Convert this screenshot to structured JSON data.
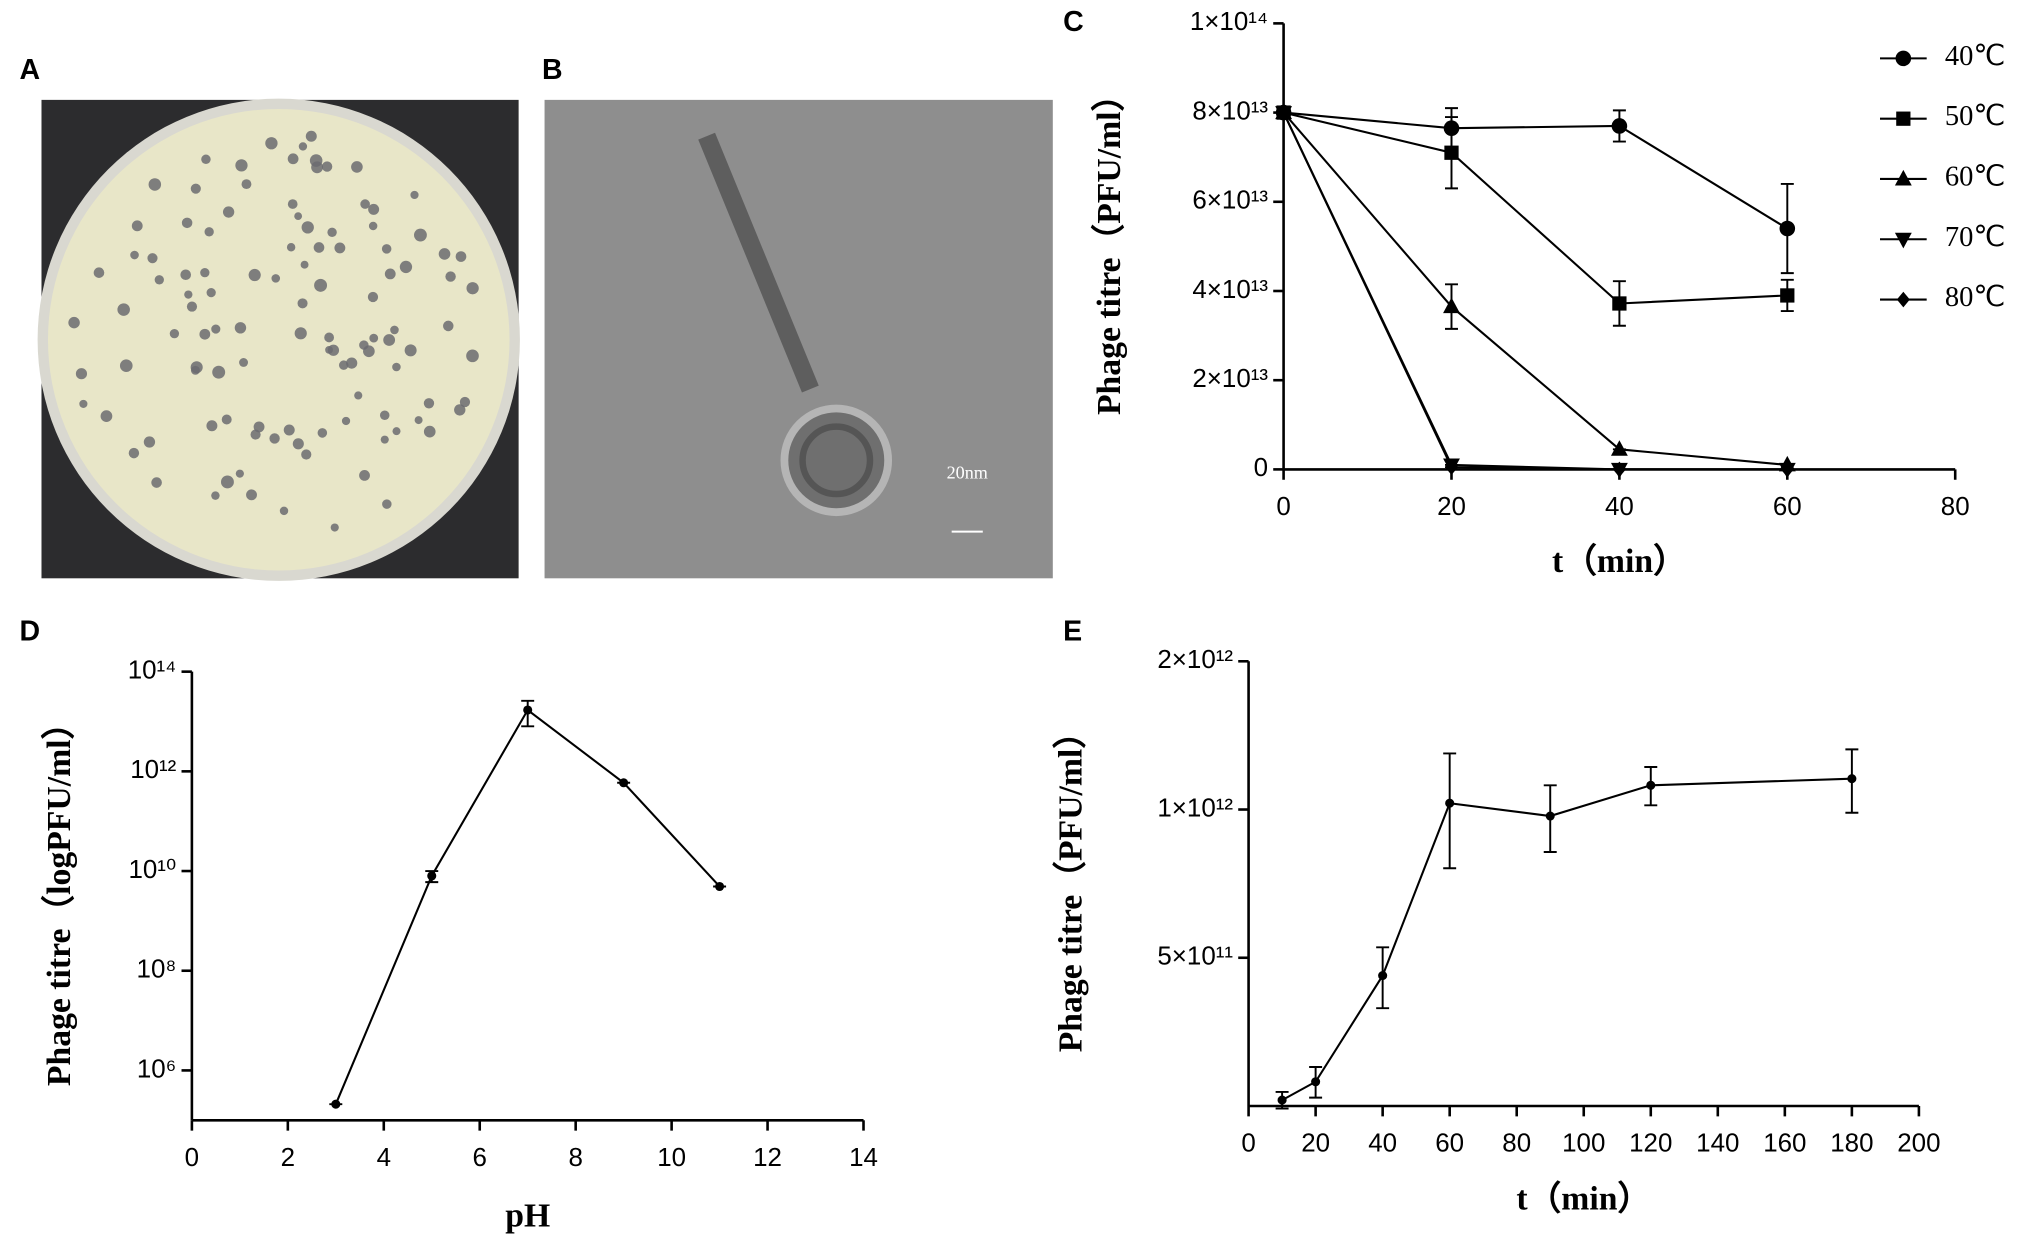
{
  "panel_labels": [
    "A",
    "B",
    "C",
    "D",
    "E"
  ],
  "panel_b": {
    "scale_bar": "20nm"
  },
  "chart_data": [
    {
      "type": "line",
      "x_label": "t（min）",
      "y_label": "Phage titre（PFU/ml）",
      "x": [
        0,
        20,
        40,
        60
      ],
      "xlim": [
        0,
        80
      ],
      "xticks": [
        0,
        20,
        40,
        60,
        80
      ],
      "ylim": [
        0,
        100000000000000
      ],
      "yticks": [
        0,
        {
          "value": 20000000000000,
          "label": "2×10¹³"
        },
        {
          "value": 40000000000000,
          "label": "4×10¹³"
        },
        {
          "value": 60000000000000,
          "label": "6×10¹³"
        },
        {
          "value": 80000000000000,
          "label": "8×10¹³"
        },
        {
          "value": 100000000000000,
          "label": "1×10¹⁴"
        }
      ],
      "log_y": false,
      "legend": "right",
      "series": [
        {
          "name": "40℃",
          "color": "#000000",
          "marker": "circle",
          "values": [
            80000000000000,
            76500000000000,
            77000000000000,
            54000000000000
          ],
          "errors": [
            0,
            4500000000000,
            3500000000000,
            10000000000000
          ]
        },
        {
          "name": "50℃",
          "color": "#000000",
          "marker": "square",
          "values": [
            80000000000000,
            71000000000000,
            37200000000000,
            39000000000000
          ],
          "errors": [
            0,
            8000000000000,
            5000000000000,
            3500000000000
          ]
        },
        {
          "name": "60℃",
          "color": "#000000",
          "marker": "triangle",
          "values": [
            80000000000000,
            36500000000000,
            4500000000000,
            1000000000000
          ],
          "errors": [
            0,
            5000000000000,
            0,
            0
          ]
        },
        {
          "name": "70℃",
          "color": "#000000",
          "marker": "triangle-down",
          "values": [
            80000000000000,
            1000000000000,
            0,
            0
          ],
          "errors": [
            0,
            0,
            0,
            0
          ]
        },
        {
          "name": "80℃",
          "color": "#000000",
          "marker": "diamond",
          "values": [
            80000000000000,
            500000000000,
            0,
            0
          ],
          "errors": [
            0,
            0,
            0,
            0
          ]
        }
      ]
    },
    {
      "type": "line",
      "x_label": "pH",
      "y_label": "Phage titre（logPFU/ml）",
      "x": [
        3,
        5,
        7,
        9,
        11
      ],
      "xlim": [
        0,
        14
      ],
      "xticks": [
        0,
        2,
        4,
        6,
        8,
        10,
        12,
        14
      ],
      "ylim": [
        100000,
        100000000000000
      ],
      "log_y": true,
      "yticks": [
        {
          "value": 1000000,
          "label": "10⁶"
        },
        {
          "value": 100000000,
          "label": "10⁸"
        },
        {
          "value": 10000000000,
          "label": "10¹⁰"
        },
        {
          "value": 1000000000000,
          "label": "10¹²"
        },
        {
          "value": 100000000000000,
          "label": "10¹⁴"
        }
      ],
      "series": [
        {
          "color": "#000000",
          "marker": "dot",
          "values": [
            210000,
            8000000000,
            17000000000000,
            590000000000,
            4900000000
          ],
          "errors": [
            0,
            2000000000,
            9000000000000,
            0,
            0
          ]
        }
      ]
    },
    {
      "type": "line",
      "x_label": "t（min）",
      "y_label": "Phage titre（PFU/ml）",
      "x": [
        10,
        20,
        40,
        60,
        90,
        120,
        180
      ],
      "xlim": [
        0,
        200
      ],
      "xticks": [
        0,
        20,
        40,
        60,
        80,
        100,
        120,
        140,
        160,
        180,
        200
      ],
      "ylim": [
        250000000000,
        2000000000000
      ],
      "log_y": true,
      "yticks": [
        {
          "value": 500000000000,
          "label": "5×10¹¹"
        },
        {
          "value": 1000000000000,
          "label": "1×10¹²"
        },
        {
          "value": 2000000000000,
          "label": "2×10¹²"
        }
      ],
      "series": [
        {
          "color": "#000000",
          "marker": "dot",
          "values": [
            257000000000,
            280000000000,
            460000000000,
            1030000000000,
            970000000000,
            1120000000000,
            1155000000000
          ],
          "errors": [
            10000000000,
            20000000000,
            65000000000,
            270000000000,
            150000000000,
            100000000000,
            170000000000
          ]
        }
      ]
    }
  ]
}
